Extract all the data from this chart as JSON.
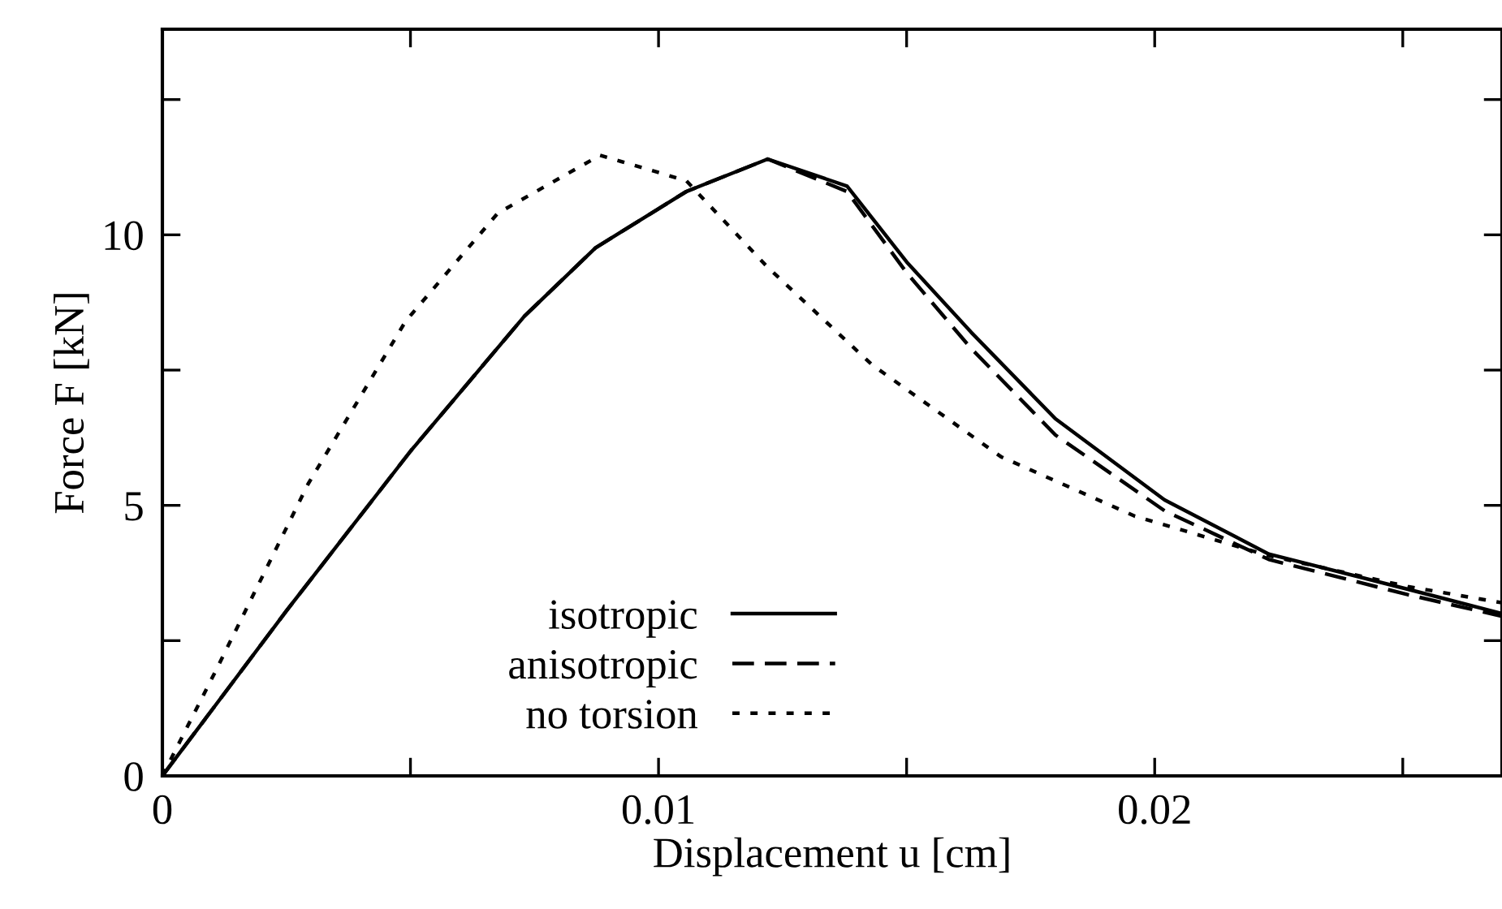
{
  "chart_data": {
    "type": "line",
    "xlabel": "Displacement u [cm]",
    "ylabel": "Force F [kN]",
    "xlim": [
      0,
      0.027
    ],
    "ylim": [
      0,
      13.8
    ],
    "xticks": [
      0,
      {
        "value": 0.005,
        "label": null
      },
      0.01,
      {
        "value": 0.015,
        "label": null
      },
      0.02,
      {
        "value": 0.025,
        "label": null
      }
    ],
    "yticks": [
      0,
      {
        "value": 2.5,
        "label": null
      },
      5,
      {
        "value": 7.5,
        "label": null
      },
      10,
      {
        "value": 12.5,
        "label": null
      }
    ],
    "grid": false,
    "legend": "bottom",
    "series": [
      {
        "name": "isotropic",
        "color": "#000000",
        "line_style": "solid",
        "x": [
          0,
          0.0025,
          0.005,
          0.0073,
          0.00873,
          0.01056,
          0.0122,
          0.0138,
          0.015,
          0.0163,
          0.018,
          0.0202,
          0.0223,
          0.0251,
          0.027
        ],
        "values": [
          0,
          3.05,
          6.0,
          8.5,
          9.76,
          10.8,
          11.4,
          10.9,
          9.5,
          8.2,
          6.6,
          5.1,
          4.1,
          3.45,
          3.0
        ]
      },
      {
        "name": "anisotropic",
        "color": "#000000",
        "line_style": "dashed",
        "x": [
          0,
          0.0025,
          0.005,
          0.0073,
          0.00873,
          0.01056,
          0.0122,
          0.0138,
          0.015,
          0.0163,
          0.018,
          0.0202,
          0.0223,
          0.0251,
          0.027
        ],
        "values": [
          0,
          3.05,
          6.0,
          8.5,
          9.76,
          10.8,
          11.4,
          10.8,
          9.3,
          7.9,
          6.3,
          4.9,
          4.0,
          3.35,
          2.95
        ]
      },
      {
        "name": "no torsion",
        "color": "#000000",
        "line_style": "dotted",
        "x": [
          0,
          0.00108,
          0.00294,
          0.0049,
          0.00676,
          0.00882,
          0.01056,
          0.0122,
          0.0143,
          0.0169,
          0.0196,
          0.0223,
          0.0251,
          0.027
        ],
        "values": [
          0,
          1.95,
          5.4,
          8.4,
          10.4,
          11.47,
          11.0,
          9.4,
          7.6,
          5.9,
          4.8,
          4.07,
          3.5,
          3.2
        ]
      }
    ]
  }
}
